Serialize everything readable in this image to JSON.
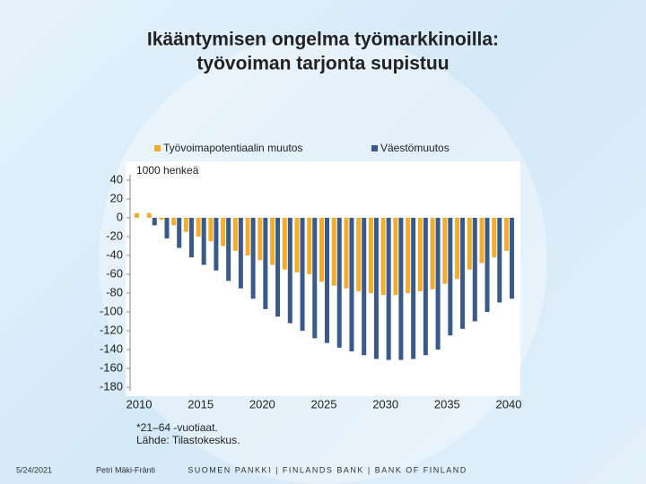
{
  "chart_data": {
    "type": "bar",
    "title": "Ikääntymisen ongelma työmarkkinoilla:",
    "subtitle": "työvoiman tarjonta supistuu",
    "unit_label": "1000 henkeä",
    "categories": [
      "2010",
      null,
      null,
      null,
      null,
      "2015",
      null,
      null,
      null,
      null,
      "2020",
      null,
      null,
      null,
      null,
      "2025",
      null,
      null,
      null,
      null,
      "2030",
      null,
      null,
      null,
      null,
      "2035",
      null,
      null,
      null,
      null,
      "2040"
    ],
    "series": [
      {
        "name": "Työvoimapotentiaalin muutos",
        "color": "#f4ac2c",
        "values": [
          5,
          5,
          -2,
          -8,
          -15,
          -20,
          -25,
          -30,
          -35,
          -40,
          -45,
          -50,
          -55,
          -58,
          -60,
          -68,
          -72,
          -75,
          -78,
          -80,
          -82,
          -82,
          -80,
          -78,
          -76,
          -70,
          -65,
          -55,
          -48,
          -42,
          -35
        ]
      },
      {
        "name": "Väestömuutos",
        "color": "#3a5a8c",
        "values": [
          0,
          -8,
          -22,
          -32,
          -42,
          -50,
          -56,
          -67,
          -75,
          -86,
          -97,
          -105,
          -112,
          -120,
          -128,
          -133,
          -138,
          -142,
          -146,
          -150,
          -151,
          -151,
          -150,
          -146,
          -140,
          -125,
          -118,
          -110,
          -100,
          -90,
          -86
        ]
      }
    ],
    "ylim": [
      -180,
      40
    ],
    "yticks": [
      40,
      20,
      0,
      -20,
      -40,
      -60,
      -80,
      -100,
      -120,
      -140,
      -160,
      -180
    ],
    "grid": false,
    "legend": "top",
    "notes": [
      "*21–64 -vuotiaat.",
      "Lähde: Tilastokeskus."
    ]
  },
  "footer": {
    "date": "5/24/2021",
    "author": "Petri Mäki-Fränti",
    "org": "SUOMEN PANKKI | FINLANDS BANK | BANK OF FINLAND"
  }
}
